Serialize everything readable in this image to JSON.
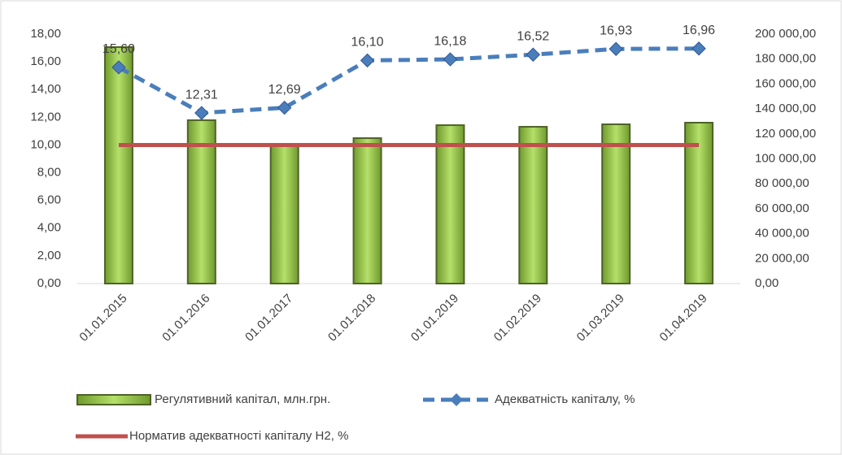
{
  "chart_data": {
    "type": "combo",
    "categories": [
      "01.01.2015",
      "01.01.2016",
      "01.01.2017",
      "01.01.2018",
      "01.01.2019",
      "01.02.2019",
      "01.03.2019",
      "01.04.2019"
    ],
    "series": [
      {
        "name": "Регулятивний капітал, млн.грн.",
        "type": "bar",
        "axis": "y2",
        "color": "#92d050",
        "values": [
          189600,
          131000,
          111400,
          116600,
          127000,
          125700,
          127700,
          129000
        ]
      },
      {
        "name": "Адекватність капіталу, %",
        "type": "line",
        "axis": "y",
        "color": "#4a7ebb",
        "values": [
          15.6,
          12.31,
          12.69,
          16.1,
          16.18,
          16.52,
          16.93,
          16.96
        ],
        "value_labels": [
          "15,60",
          "12,31",
          "12,69",
          "16,10",
          "16,18",
          "16,52",
          "16,93",
          "16,96"
        ]
      },
      {
        "name": "Норматив адекватності капіталу Н2, %",
        "type": "line",
        "axis": "y",
        "color": "#c0504d",
        "values": [
          10,
          10,
          10,
          10,
          10,
          10,
          10,
          10
        ]
      }
    ],
    "ylim": [
      0,
      18
    ],
    "yticks": [
      {
        "value": 0,
        "label": "0,00"
      },
      {
        "value": 2,
        "label": "2,00"
      },
      {
        "value": 4,
        "label": "4,00"
      },
      {
        "value": 6,
        "label": "6,00"
      },
      {
        "value": 8,
        "label": "8,00"
      },
      {
        "value": 10,
        "label": "10,00"
      },
      {
        "value": 12,
        "label": "12,00"
      },
      {
        "value": 14,
        "label": "14,00"
      },
      {
        "value": 16,
        "label": "16,00"
      },
      {
        "value": 18,
        "label": "18,00"
      }
    ],
    "y2lim": [
      0,
      200000
    ],
    "y2ticks": [
      {
        "value": 0,
        "label": "0,00"
      },
      {
        "value": 20000,
        "label": "20 000,00"
      },
      {
        "value": 40000,
        "label": "40 000,00"
      },
      {
        "value": 60000,
        "label": "60 000,00"
      },
      {
        "value": 80000,
        "label": "80 000,00"
      },
      {
        "value": 100000,
        "label": "100 000,00"
      },
      {
        "value": 120000,
        "label": "120 000,00"
      },
      {
        "value": 140000,
        "label": "140 000,00"
      },
      {
        "value": 160000,
        "label": "160 000,00"
      },
      {
        "value": 180000,
        "label": "180 000,00"
      },
      {
        "value": 200000,
        "label": "200 000,00"
      }
    ],
    "grid": false
  }
}
